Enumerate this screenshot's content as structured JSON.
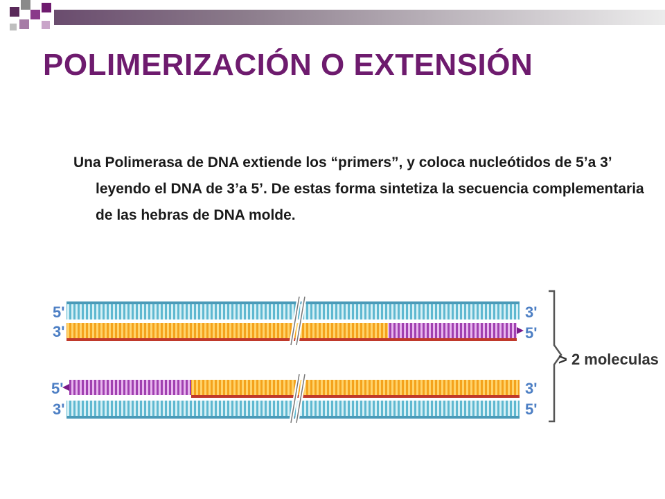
{
  "slide": {
    "title": "POLIMERIZACIÓN O EXTENSIÓN",
    "body": "Una Polimerasa de DNA extiende los “primers”,  y coloca nucleótidos de 5’a 3’ leyendo el DNA de 3’a 5’. De estas forma sintetiza la secuencia complementaria de las hebras de DNA molde."
  },
  "figure": {
    "molecule_1": {
      "top_left": "5'",
      "top_right": "3'",
      "bottom_left": "3'",
      "bottom_right": "5'"
    },
    "molecule_2": {
      "top_left": "5'",
      "top_right": "3'",
      "bottom_left": "3'",
      "bottom_right": "5'"
    },
    "bracket_label": "> 2 moleculas",
    "colors": {
      "template": "#5fb8d0",
      "template_light": "#d6f0f6",
      "primer": "#f4a21c",
      "primer_light": "#ffd36a",
      "new_strand": "#a040b0",
      "new_strand_light": "#e8b6ee",
      "backbone": "#c0392b",
      "label": "#4d7fc4",
      "title": "#6e1b6e"
    }
  }
}
